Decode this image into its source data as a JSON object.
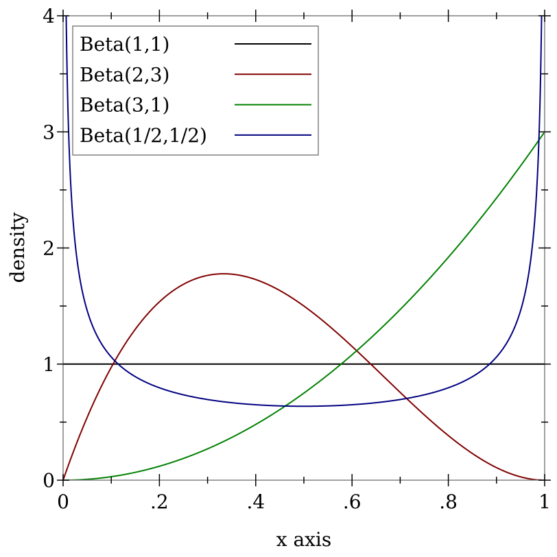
{
  "chart_data": {
    "type": "line",
    "title": "",
    "xlabel": "x axis",
    "ylabel": "density",
    "xlim": [
      0,
      1
    ],
    "ylim": [
      0,
      4
    ],
    "x_ticks": [
      0,
      0.2,
      0.4,
      0.6,
      0.8,
      1
    ],
    "x_tick_labels": [
      "0",
      ".2",
      ".4",
      ".6",
      ".8",
      "1"
    ],
    "y_ticks": [
      0,
      1,
      2,
      3,
      4
    ],
    "y_tick_labels": [
      "0",
      "1",
      "2",
      "3",
      "4"
    ],
    "grid": false,
    "legend_placement": "top-left",
    "series": [
      {
        "name": "Beta(1,1)",
        "distribution": "beta",
        "alpha": 1,
        "beta": 1,
        "color": "#000000"
      },
      {
        "name": "Beta(2,3)",
        "distribution": "beta",
        "alpha": 2,
        "beta": 3,
        "color": "#800000"
      },
      {
        "name": "Beta(3,1)",
        "distribution": "beta",
        "alpha": 3,
        "beta": 1,
        "color": "#008000"
      },
      {
        "name": "Beta(1/2,1/2)",
        "distribution": "beta",
        "alpha": 0.5,
        "beta": 0.5,
        "color": "#000080"
      }
    ]
  }
}
